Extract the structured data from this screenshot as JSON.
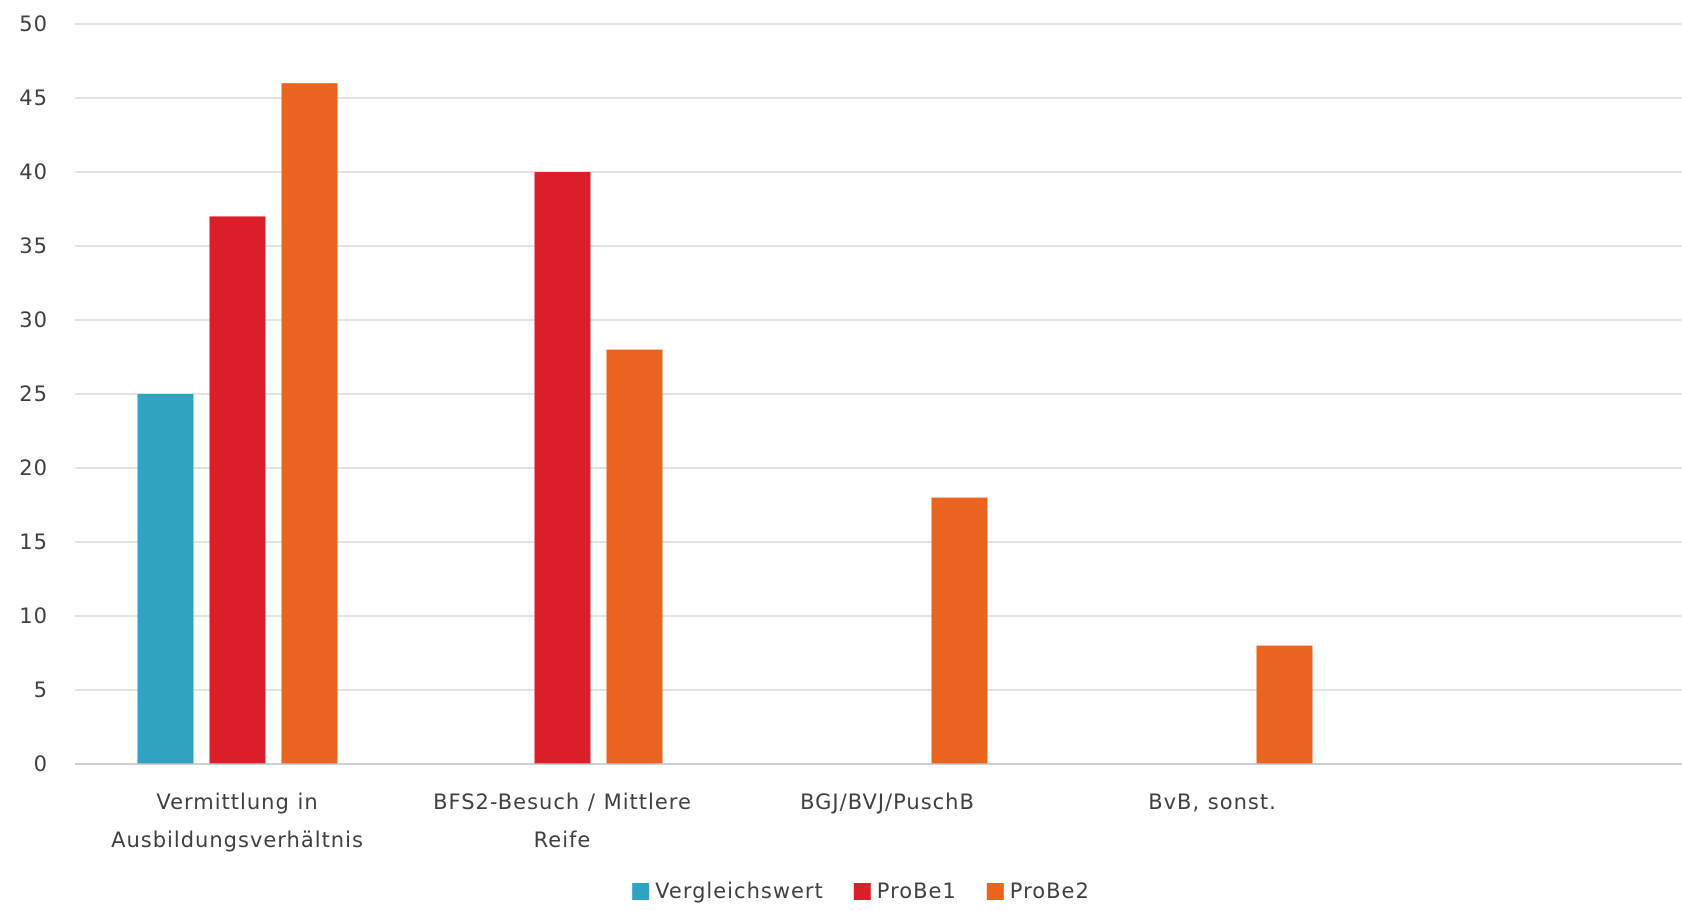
{
  "chart_data": {
    "type": "bar",
    "categories": [
      [
        "Vermittlung in",
        "Ausbildungsverhältnis"
      ],
      [
        "BFS2-Besuch / Mittlere",
        "Reife"
      ],
      [
        "BGJ/BVJ/PuschB"
      ],
      [
        "BvB, sonst."
      ]
    ],
    "series": [
      {
        "name": "Vergleichswert",
        "color": "#2ea3c2",
        "values": [
          25,
          null,
          null,
          null
        ]
      },
      {
        "name": "ProBe1",
        "color": "#db1f2a",
        "values": [
          37,
          40,
          null,
          null
        ]
      },
      {
        "name": "ProBe2",
        "color": "#ea641f",
        "values": [
          46,
          28,
          18,
          8
        ]
      }
    ],
    "title": "",
    "xlabel": "",
    "ylabel": "",
    "ylim": [
      0,
      50
    ],
    "yticks": [
      0,
      5,
      10,
      15,
      20,
      25,
      30,
      35,
      40,
      45,
      50
    ],
    "grid": true,
    "legend": "bottom-center",
    "colors": {
      "grid": "#d9d9d9",
      "axis": "#bfbfbf",
      "text": "#404040"
    }
  }
}
